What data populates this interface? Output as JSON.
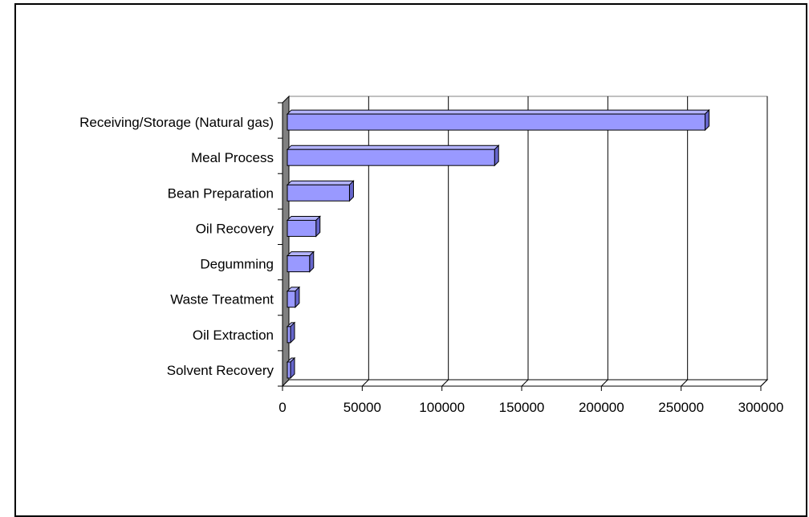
{
  "chart_data": {
    "type": "bar",
    "orientation": "horizontal",
    "style": "3d",
    "categories": [
      "Receiving/Storage (Natural gas)",
      "Meal Process",
      "Bean Preparation",
      "Oil Recovery",
      "Degumming",
      "Waste Treatment",
      "Oil Extraction",
      "Solvent Recovery"
    ],
    "series": [
      {
        "values": [
          265000,
          133000,
          42000,
          21000,
          17000,
          8000,
          1000,
          1000
        ]
      }
    ],
    "xlim": [
      0,
      300000
    ],
    "xticks": [
      "0",
      "50000",
      "100000",
      "150000",
      "200000",
      "250000",
      "300000"
    ],
    "grid": "vertical",
    "bar_color": "#9999ff",
    "wall_color": "#808080",
    "title": "",
    "xlabel": "",
    "ylabel": ""
  }
}
